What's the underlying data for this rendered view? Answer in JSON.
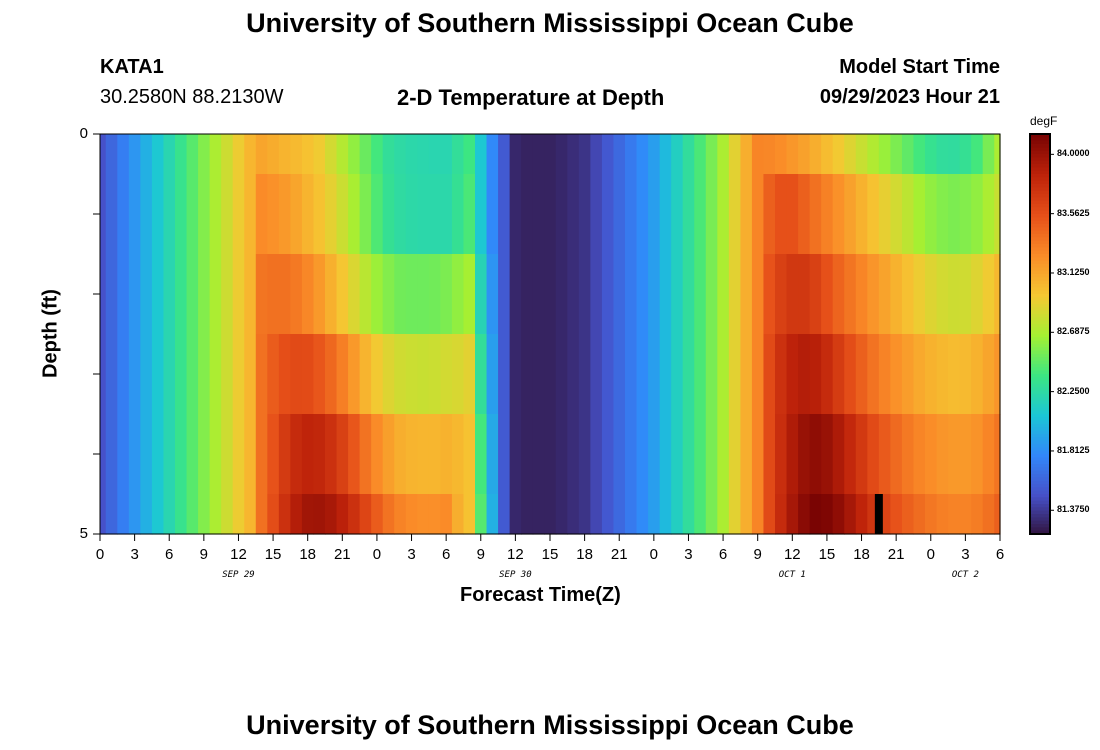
{
  "page": {
    "title_top": "University of Southern Mississippi Ocean Cube",
    "title_bottom": "University of Southern Mississippi Ocean Cube",
    "station": "KATA1",
    "coords": "30.2580N  88.2130W",
    "plot_title": "2-D Temperature at Depth",
    "model_label": "Model Start Time",
    "model_time": "09/29/2023 Hour 21"
  },
  "chart_data": {
    "type": "heatmap",
    "title": "2-D Temperature at Depth",
    "xlabel": "Forecast Time(Z)",
    "ylabel": "Depth (ft)",
    "y_tick_labels": [
      "0",
      "5"
    ],
    "ylim": [
      0,
      5
    ],
    "x_tick_labels": [
      "0",
      "3",
      "6",
      "9",
      "12",
      "15",
      "18",
      "21",
      "0",
      "3",
      "6",
      "9",
      "12",
      "15",
      "18",
      "21",
      "0",
      "3",
      "6",
      "9",
      "12",
      "15",
      "18",
      "21",
      "0",
      "3",
      "6"
    ],
    "date_labels": [
      {
        "text": "SEP 29",
        "hour_index": 4
      },
      {
        "text": "SEP 30",
        "hour_index": 12
      },
      {
        "text": "OCT 1",
        "hour_index": 20
      },
      {
        "text": "OCT 2",
        "hour_index": 25
      }
    ],
    "colorbar": {
      "unit": "degF",
      "min": 81.2,
      "max": 84.15,
      "tick_labels": [
        "84.0000",
        "83.5625",
        "83.1250",
        "82.6875",
        "82.2500",
        "81.8125",
        "81.3750"
      ],
      "tick_values": [
        84.0,
        83.5625,
        83.125,
        82.6875,
        82.25,
        81.8125,
        81.375
      ]
    },
    "time_hours": [
      0,
      1,
      2,
      3,
      4,
      5,
      6,
      7,
      8,
      9,
      10,
      11,
      12,
      13,
      14,
      15,
      16,
      17,
      18,
      19,
      20,
      21,
      22,
      23,
      24,
      25,
      26,
      27,
      28,
      29,
      30,
      31,
      32,
      33,
      34,
      35,
      36,
      37,
      38,
      39,
      40,
      41,
      42,
      43,
      44,
      45,
      46,
      47,
      48,
      49,
      50,
      51,
      52,
      53,
      54,
      55,
      56,
      57,
      58,
      59,
      60,
      61,
      62,
      63,
      64,
      65,
      66,
      67,
      68,
      69,
      70,
      71,
      72,
      73,
      74,
      75,
      76,
      77,
      78
    ],
    "depth_bands_ft": [
      [
        0,
        0.5
      ],
      [
        0.5,
        1.5
      ],
      [
        1.5,
        2.5
      ],
      [
        2.5,
        3.5
      ],
      [
        3.5,
        4.5
      ],
      [
        4.5,
        5
      ]
    ],
    "temperature_rows": {
      "depth_0_0": [
        81.5,
        81.62,
        81.74,
        81.86,
        81.98,
        82.1,
        82.22,
        82.34,
        82.46,
        82.58,
        82.7,
        82.82,
        82.94,
        83.06,
        83.14,
        83.11,
        83.07,
        83.04,
        83.0,
        82.95,
        82.84,
        82.73,
        82.62,
        82.51,
        82.4,
        82.3,
        82.26,
        82.24,
        82.23,
        82.22,
        82.22,
        82.3,
        82.38,
        82.1,
        81.8,
        81.55,
        81.3,
        81.28,
        81.28,
        81.28,
        81.3,
        81.33,
        81.36,
        81.45,
        81.54,
        81.63,
        81.72,
        81.81,
        81.9,
        82.03,
        82.16,
        82.29,
        82.42,
        82.55,
        82.7,
        82.9,
        83.1,
        83.3,
        83.29,
        83.26,
        83.21,
        83.16,
        83.1,
        83.03,
        82.96,
        82.88,
        82.8,
        82.72,
        82.64,
        82.56,
        82.48,
        82.4,
        82.33,
        82.29,
        82.28,
        82.32,
        82.4,
        82.55,
        82.7
      ],
      "depth_0_5": [
        81.5,
        81.62,
        81.74,
        81.86,
        81.98,
        82.1,
        82.22,
        82.34,
        82.46,
        82.58,
        82.7,
        82.82,
        82.94,
        83.06,
        83.27,
        83.24,
        83.2,
        83.14,
        83.07,
        83.0,
        82.91,
        82.81,
        82.69,
        82.56,
        82.43,
        82.32,
        82.27,
        82.25,
        82.24,
        82.24,
        82.24,
        82.32,
        82.42,
        82.1,
        81.8,
        81.55,
        81.3,
        81.28,
        81.28,
        81.28,
        81.3,
        81.33,
        81.36,
        81.45,
        81.54,
        81.63,
        81.72,
        81.81,
        81.9,
        82.03,
        82.16,
        82.29,
        82.42,
        82.55,
        82.7,
        82.9,
        83.1,
        83.3,
        83.48,
        83.56,
        83.56,
        83.48,
        83.4,
        83.32,
        83.24,
        83.16,
        83.08,
        83.0,
        82.92,
        82.84,
        82.76,
        82.68,
        82.62,
        82.58,
        82.56,
        82.58,
        82.62,
        82.7,
        82.8
      ],
      "depth_1_5": [
        81.5,
        81.62,
        81.74,
        81.86,
        81.98,
        82.1,
        82.22,
        82.34,
        82.46,
        82.58,
        82.7,
        82.82,
        82.94,
        83.06,
        83.38,
        83.4,
        83.4,
        83.36,
        83.29,
        83.2,
        83.09,
        82.98,
        82.87,
        82.75,
        82.65,
        82.58,
        82.53,
        82.52,
        82.52,
        82.53,
        82.56,
        82.62,
        82.68,
        82.2,
        81.85,
        81.55,
        81.3,
        81.28,
        81.28,
        81.28,
        81.3,
        81.33,
        81.36,
        81.45,
        81.54,
        81.63,
        81.72,
        81.81,
        81.9,
        82.03,
        82.16,
        82.29,
        82.42,
        82.55,
        82.7,
        82.9,
        83.1,
        83.3,
        83.55,
        83.66,
        83.72,
        83.72,
        83.66,
        83.56,
        83.46,
        83.38,
        83.3,
        83.22,
        83.15,
        83.08,
        83.01,
        82.94,
        82.88,
        82.84,
        82.82,
        82.83,
        82.88,
        82.95,
        83.05
      ],
      "depth_2_5": [
        81.5,
        81.62,
        81.74,
        81.86,
        81.98,
        82.1,
        82.22,
        82.34,
        82.46,
        82.58,
        82.7,
        82.82,
        82.94,
        83.06,
        83.4,
        83.5,
        83.57,
        83.6,
        83.59,
        83.53,
        83.44,
        83.33,
        83.2,
        83.07,
        82.96,
        82.88,
        82.83,
        82.81,
        82.8,
        82.81,
        82.84,
        82.86,
        82.9,
        82.3,
        81.9,
        81.55,
        81.3,
        81.28,
        81.28,
        81.28,
        81.3,
        81.33,
        81.36,
        81.45,
        81.54,
        81.63,
        81.72,
        81.81,
        81.9,
        82.03,
        82.16,
        82.29,
        82.42,
        82.55,
        82.7,
        82.9,
        83.1,
        83.3,
        83.6,
        83.76,
        83.86,
        83.9,
        83.88,
        83.8,
        83.69,
        83.58,
        83.48,
        83.39,
        83.31,
        83.24,
        83.18,
        83.12,
        83.08,
        83.05,
        83.03,
        83.04,
        83.08,
        83.14,
        83.22
      ],
      "depth_3_5": [
        81.5,
        81.62,
        81.74,
        81.86,
        81.98,
        82.1,
        82.22,
        82.34,
        82.46,
        82.58,
        82.7,
        82.82,
        82.94,
        83.06,
        83.4,
        83.55,
        83.7,
        83.8,
        83.85,
        83.83,
        83.76,
        83.66,
        83.53,
        83.39,
        83.27,
        83.17,
        83.1,
        83.07,
        83.06,
        83.06,
        83.08,
        83.05,
        83.0,
        82.4,
        81.95,
        81.55,
        81.3,
        81.28,
        81.28,
        81.28,
        81.3,
        81.33,
        81.36,
        81.45,
        81.54,
        81.63,
        81.72,
        81.81,
        81.9,
        82.03,
        82.16,
        82.29,
        82.42,
        82.55,
        82.7,
        82.9,
        83.1,
        83.3,
        83.6,
        83.78,
        83.92,
        84.02,
        84.06,
        84.02,
        83.93,
        83.82,
        83.71,
        83.6,
        83.51,
        83.43,
        83.36,
        83.3,
        83.26,
        83.22,
        83.2,
        83.2,
        83.23,
        83.3,
        83.38
      ],
      "depth_4_5": [
        81.5,
        81.62,
        81.74,
        81.86,
        81.98,
        82.1,
        82.22,
        82.34,
        82.46,
        82.58,
        82.7,
        82.82,
        82.94,
        83.06,
        83.4,
        83.58,
        83.76,
        83.9,
        83.98,
        83.99,
        83.95,
        83.87,
        83.76,
        83.63,
        83.5,
        83.39,
        83.31,
        83.27,
        83.25,
        83.25,
        83.27,
        83.1,
        83.0,
        82.45,
        81.98,
        81.55,
        81.3,
        81.28,
        81.28,
        81.28,
        81.3,
        81.33,
        81.36,
        81.45,
        81.54,
        81.63,
        81.72,
        81.81,
        81.9,
        82.03,
        82.16,
        82.29,
        82.42,
        82.55,
        82.7,
        82.9,
        83.1,
        83.3,
        83.6,
        83.8,
        83.96,
        84.08,
        84.15,
        84.13,
        84.06,
        83.96,
        83.85,
        83.74,
        83.64,
        83.55,
        83.48,
        83.42,
        83.37,
        83.33,
        83.31,
        83.31,
        83.34,
        83.4,
        83.48
      ]
    },
    "bottom_marker": {
      "label": "bottom",
      "hour": 67.5,
      "depth_start_ft": 4.5
    }
  }
}
